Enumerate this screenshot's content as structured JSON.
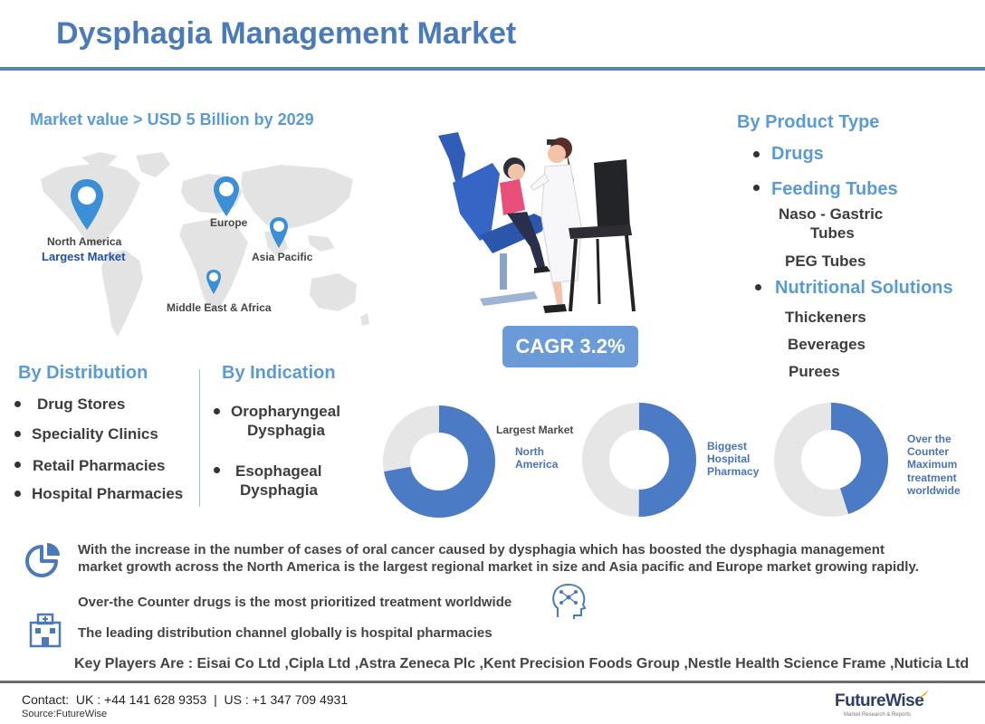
{
  "title": "Dysphagia Management Market",
  "market_value": "Market value > USD 5 Billion by 2029",
  "map": {
    "north_america": "North America",
    "largest_market": "Largest Market",
    "europe": "Europe",
    "asia_pacific": "Asia Pacific",
    "mea": "Middle East & Africa"
  },
  "product_type": {
    "heading": "By Product Type",
    "drugs": "Drugs",
    "feeding_tubes": "Feeding Tubes",
    "naso_line1": "Naso - Gastric",
    "naso_line2": "Tubes",
    "peg": "PEG Tubes",
    "nutritional": "Nutritional Solutions",
    "thickeners": "Thickeners",
    "beverages": "Beverages",
    "purees": "Purees"
  },
  "cagr": "CAGR 3.2%",
  "distribution": {
    "heading": "By Distribution",
    "items": [
      "Drug Stores",
      "Speciality Clinics",
      "Retail Pharmacies",
      "Hospital Pharmacies"
    ]
  },
  "indication": {
    "heading": "By Indication",
    "item1_line1": "Oropharyngeal",
    "item1_line2": "Dysphagia",
    "item2_line1": "Esophageal",
    "item2_line2": "Dysphagia"
  },
  "donuts": [
    {
      "label_lines": [
        "North",
        "America"
      ],
      "header": "Largest Market",
      "fraction": 0.72
    },
    {
      "label_lines": [
        "Biggest",
        "Hospital",
        "Pharmacy"
      ],
      "fraction": 0.5
    },
    {
      "label_lines": [
        "Over the",
        "Counter",
        "Maximum",
        "treatment",
        "worldwide"
      ],
      "fraction": 0.45
    }
  ],
  "colors": {
    "accent": "#4a7ab8",
    "donut_fill": "#4a7bc4",
    "donut_bg": "#e6e6e6"
  },
  "statements": {
    "s1_line1": "With the increase in the number of cases of oral cancer caused by dysphagia which has boosted the dysphagia management",
    "s1_line2": "market growth across the North America is the largest regional market in size and Asia pacific and Europe market growing rapidly.",
    "s2": "Over-the Counter drugs is the most prioritized treatment worldwide",
    "s3": "The leading distribution channel globally is hospital pharmacies"
  },
  "key_players": "Key Players Are :  Eisai Co Ltd ,Cipla Ltd ,Astra Zeneca Plc ,Kent Precision Foods Group ,Nestle Health Science Frame ,Nuticia Ltd",
  "contact": "Contact:  UK : +44 141 628 9353  |  US : +1 347 709 4931",
  "source": "Source:FutureWise",
  "brand": "FutureWise",
  "brand_tagline": "Market Research & Reports",
  "icons": {
    "pie": "pie-chart-icon",
    "head": "head-network-icon",
    "building": "hospital-building-icon"
  }
}
